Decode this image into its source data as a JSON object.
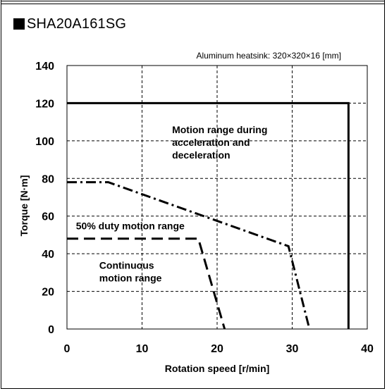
{
  "title": "SHA20A161SG",
  "chart_data": {
    "type": "line",
    "subtitle": "Aluminum heatsink: 320×320×16 [mm]",
    "xlabel": "Rotation speed [r/min]",
    "ylabel": "Torque [N·m]",
    "xlim": [
      0,
      40
    ],
    "ylim": [
      0,
      140
    ],
    "xticks": [
      0,
      10,
      20,
      30,
      40
    ],
    "yticks": [
      0,
      20,
      40,
      60,
      80,
      100,
      120,
      140
    ],
    "grid": true,
    "series": [
      {
        "name": "Motion range during acceleration and deceleration",
        "style": "solid",
        "color": "#000000",
        "x": [
          0,
          37.5,
          37.5
        ],
        "y": [
          120,
          120,
          0
        ]
      },
      {
        "name": "50% duty motion range",
        "style": "dash-dot",
        "color": "#000000",
        "x": [
          0,
          5.5,
          29.5,
          32.3
        ],
        "y": [
          78,
          78,
          44,
          0
        ]
      },
      {
        "name": "Continuous motion range",
        "style": "dashed",
        "color": "#000000",
        "x": [
          0,
          17.5,
          21
        ],
        "y": [
          48,
          48,
          0
        ]
      }
    ],
    "annotations": [
      {
        "lines": [
          "Motion range during",
          "acceleration and",
          "deceleration"
        ],
        "x": 14,
        "y": 104
      },
      {
        "lines": [
          "50% duty motion range"
        ],
        "x": 1.2,
        "y": 53
      },
      {
        "lines": [
          "Continuous",
          "motion range"
        ],
        "x": 4.3,
        "y": 32
      }
    ]
  }
}
